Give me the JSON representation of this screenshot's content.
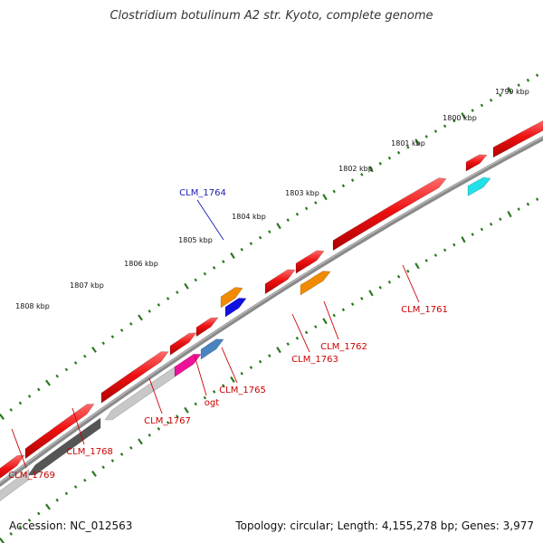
{
  "title": "Clostridium botulinum A2 str. Kyoto, complete genome",
  "footer": {
    "accession": "Accession: NC_012563",
    "topology": "Topology: circular; Length: 4,155,278 bp; Genes: 3,977"
  },
  "ticks": [
    "1799 kbp",
    "1800 kbp",
    "1801 kbp",
    "1802 kbp",
    "1803 kbp",
    "1804 kbp",
    "1805 kbp",
    "1806 kbp",
    "1807 kbp",
    "1808 kbp"
  ],
  "genes": [
    {
      "name": "CLM_1761",
      "color": "#e0201a"
    },
    {
      "name": "CLM_1762",
      "color": "#e0201a"
    },
    {
      "name": "CLM_1763",
      "color": "#e0201a"
    },
    {
      "name": "CLM_1764",
      "color": "#1a1ab0"
    },
    {
      "name": "CLM_1765",
      "color": "#e0201a"
    },
    {
      "name": "ogt",
      "color": "#e0201a"
    },
    {
      "name": "CLM_1767",
      "color": "#e0201a"
    },
    {
      "name": "CLM_1768",
      "color": "#e0201a"
    },
    {
      "name": "CLM_1769",
      "color": "#e0201a"
    }
  ],
  "colors": {
    "cds_red": "#ee1111",
    "orange": "#f08a00",
    "blue": "#1010e0",
    "cyan": "#22e0e8",
    "magenta": "#ee1199",
    "steelblue": "#4a84c0",
    "darkgray": "#555555",
    "lightgray": "#c8c8c8",
    "backbone": "#8a8a8a",
    "tick_green": "#2a7a1e"
  }
}
